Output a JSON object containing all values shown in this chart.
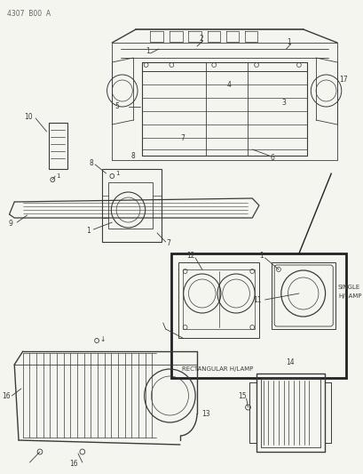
{
  "background_color": "#f5f5f0",
  "line_color": "#3a3a3a",
  "text_color": "#3a3a3a",
  "header": "4307  B00  A",
  "inset_rect_label": "RECTANGULAR H/LAMP",
  "single_lamp_label1": "SINGLE",
  "single_lamp_label2": "H/LAMP",
  "figsize": [
    4.1,
    5.33
  ],
  "dpi": 100
}
